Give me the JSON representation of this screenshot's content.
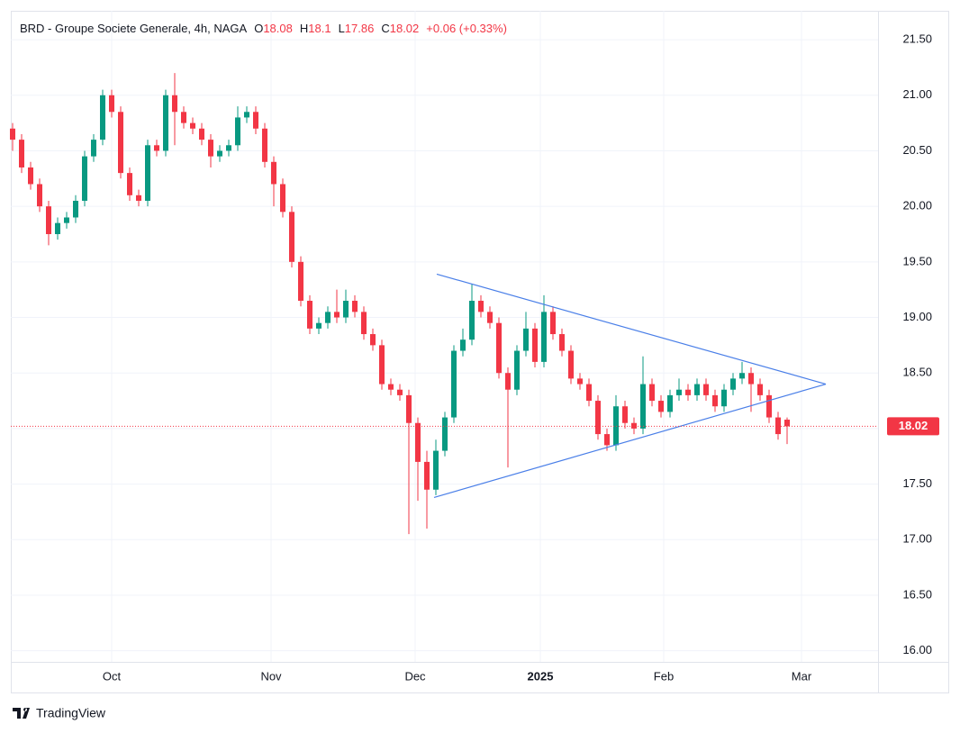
{
  "chart_data": {
    "type": "candlestick",
    "title": "BRD - Groupe Societe Generale, 4h, NAGA",
    "ohlc_labels": [
      "O",
      "H",
      "L",
      "C"
    ],
    "change": "+0.06 (+0.33%)",
    "up_color": "#089981",
    "down_color": "#f23645",
    "open": [
      20.7,
      20.6,
      20.35,
      20.2,
      20.0,
      19.75,
      19.85,
      19.9,
      20.05,
      20.45,
      20.6,
      21.0,
      20.85,
      20.3,
      20.1,
      20.05,
      20.55,
      20.5,
      21.0,
      20.85,
      20.75,
      20.7,
      20.6,
      20.45,
      20.5,
      20.55,
      20.8,
      20.85,
      20.7,
      20.4,
      20.2,
      19.95,
      19.5,
      19.15,
      18.9,
      18.95,
      19.05,
      19.0,
      19.15,
      19.05,
      18.85,
      18.75,
      18.4,
      18.35,
      18.3,
      18.05,
      17.7,
      17.45,
      17.8,
      18.1,
      18.7,
      18.8,
      19.15,
      19.05,
      18.95,
      18.5,
      18.35,
      18.7,
      18.9,
      18.6,
      19.05,
      18.85,
      18.7,
      18.45,
      18.4,
      18.25,
      17.95,
      17.85,
      18.2,
      18.05,
      18.0,
      18.4,
      18.25,
      18.15,
      18.3,
      18.35,
      18.3,
      18.4,
      18.3,
      18.2,
      18.35,
      18.45,
      18.5,
      18.4,
      18.3,
      18.1,
      18.08
    ],
    "high": [
      20.75,
      20.65,
      20.4,
      20.25,
      20.05,
      19.9,
      19.95,
      20.1,
      20.5,
      20.65,
      21.05,
      21.05,
      20.9,
      20.35,
      20.15,
      20.6,
      20.6,
      21.05,
      21.2,
      20.9,
      20.8,
      20.75,
      20.65,
      20.55,
      20.6,
      20.9,
      20.9,
      20.9,
      20.75,
      20.45,
      20.25,
      20.0,
      19.55,
      19.2,
      19.0,
      19.1,
      19.25,
      19.25,
      19.2,
      19.1,
      18.9,
      18.8,
      18.45,
      18.4,
      18.35,
      18.1,
      17.8,
      17.9,
      18.15,
      18.75,
      18.9,
      19.3,
      19.2,
      19.1,
      19.0,
      18.55,
      18.75,
      19.05,
      18.95,
      19.2,
      19.1,
      18.9,
      18.75,
      18.5,
      18.45,
      18.3,
      18.0,
      18.3,
      18.25,
      18.1,
      18.65,
      18.45,
      18.3,
      18.35,
      18.45,
      18.4,
      18.45,
      18.45,
      18.35,
      18.4,
      18.5,
      18.6,
      18.55,
      18.45,
      18.35,
      18.15,
      18.1
    ],
    "low": [
      20.5,
      20.3,
      20.15,
      19.95,
      19.65,
      19.7,
      19.8,
      19.85,
      20.0,
      20.4,
      20.55,
      20.8,
      20.25,
      20.05,
      20.0,
      20.0,
      20.45,
      20.45,
      20.55,
      20.7,
      20.65,
      20.55,
      20.35,
      20.4,
      20.45,
      20.5,
      20.75,
      20.65,
      20.35,
      20.0,
      19.9,
      19.45,
      19.1,
      18.85,
      18.85,
      18.9,
      18.95,
      18.95,
      19.0,
      18.8,
      18.7,
      18.35,
      18.3,
      18.25,
      17.05,
      17.35,
      17.1,
      17.4,
      17.75,
      18.05,
      18.65,
      18.75,
      19.0,
      18.9,
      18.45,
      17.65,
      18.3,
      18.65,
      18.55,
      18.55,
      18.8,
      18.65,
      18.4,
      18.35,
      18.2,
      17.9,
      17.8,
      17.8,
      18.0,
      17.95,
      17.95,
      18.2,
      18.1,
      18.1,
      18.25,
      18.25,
      18.25,
      18.25,
      18.15,
      18.15,
      18.3,
      18.4,
      18.15,
      18.25,
      18.05,
      17.9,
      17.86
    ],
    "close": [
      20.6,
      20.35,
      20.2,
      20.0,
      19.75,
      19.85,
      19.9,
      20.05,
      20.45,
      20.6,
      21.0,
      20.85,
      20.3,
      20.1,
      20.05,
      20.55,
      20.5,
      21.0,
      20.85,
      20.75,
      20.7,
      20.6,
      20.45,
      20.5,
      20.55,
      20.8,
      20.85,
      20.7,
      20.4,
      20.2,
      19.95,
      19.5,
      19.15,
      18.9,
      18.95,
      19.05,
      19.0,
      19.15,
      19.05,
      18.85,
      18.75,
      18.4,
      18.35,
      18.3,
      18.05,
      17.7,
      17.45,
      17.8,
      18.1,
      18.7,
      18.8,
      19.15,
      19.05,
      18.95,
      18.5,
      18.35,
      18.7,
      18.9,
      18.6,
      19.05,
      18.85,
      18.7,
      18.45,
      18.4,
      18.25,
      17.95,
      17.85,
      18.2,
      18.05,
      18.0,
      18.4,
      18.25,
      18.15,
      18.3,
      18.35,
      18.3,
      18.4,
      18.3,
      18.2,
      18.35,
      18.45,
      18.5,
      18.4,
      18.3,
      18.1,
      17.95,
      18.02
    ],
    "trendlines": [
      {
        "color": "#4a7fe8",
        "x": [
          47.1,
          90.3
        ],
        "y": [
          19.39,
          18.4
        ]
      },
      {
        "color": "#4a7fe8",
        "x": [
          46.8,
          90.3
        ],
        "y": [
          17.38,
          18.4
        ]
      }
    ],
    "xlim": [
      -0.2,
      96.1
    ],
    "xticks": [
      {
        "value": 11.0,
        "label": "Oct"
      },
      {
        "value": 28.7,
        "label": "Nov"
      },
      {
        "value": 44.7,
        "label": "Dec"
      },
      {
        "value": 58.6,
        "label": "2025"
      },
      {
        "value": 72.3,
        "label": "Feb"
      },
      {
        "value": 87.6,
        "label": "Mar"
      }
    ],
    "ylim": [
      15.9,
      21.76
    ],
    "yticks": [
      {
        "value": 16,
        "label": "16.00"
      },
      {
        "value": 16.5,
        "label": "16.50"
      },
      {
        "value": 17,
        "label": "17.00"
      },
      {
        "value": 17.5,
        "label": "17.50"
      },
      {
        "value": 18,
        "label": "18.00"
      },
      {
        "value": 18.5,
        "label": "18.50"
      },
      {
        "value": 19,
        "label": "19.00"
      },
      {
        "value": 19.5,
        "label": "19.50"
      },
      {
        "value": 20,
        "label": "20.00"
      },
      {
        "value": 20.5,
        "label": "20.50"
      },
      {
        "value": 21,
        "label": "21.00"
      },
      {
        "value": 21.5,
        "label": "21.50"
      }
    ],
    "grid": true,
    "brand": "TradingView"
  }
}
